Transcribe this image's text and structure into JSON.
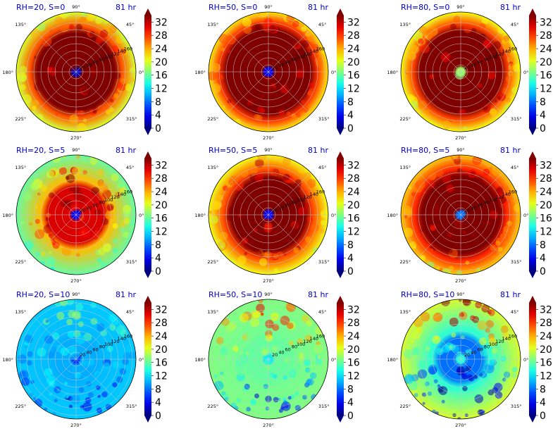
{
  "figure": {
    "angle_labels": [
      "90°",
      "45°",
      "0°",
      "315°",
      "270°",
      "225°",
      "180°",
      "135°"
    ],
    "radial_labels": [
      "20",
      "40",
      "60",
      "80",
      "100",
      "120",
      "140",
      "160"
    ],
    "colorbar": {
      "ticks": [
        "0",
        "4",
        "8",
        "12",
        "16",
        "20",
        "24",
        "28",
        "32"
      ],
      "colormap": "jet",
      "extend": "both",
      "colors": [
        "#00007f",
        "#0000ff",
        "#007fff",
        "#00ffff",
        "#7fff7f",
        "#ffff00",
        "#ff7f00",
        "#ff0000",
        "#7f0000"
      ]
    }
  },
  "chart_data": [
    {
      "type": "heatmap",
      "projection": "polar",
      "title": "RH=20, S=0",
      "time": "81 hr",
      "rh": 20,
      "shear": 0,
      "eye_value": 2,
      "core_value": 34,
      "core_radius_km": 110,
      "outer_value": 20,
      "rlim": [
        0,
        170
      ],
      "clim": [
        0,
        34
      ],
      "azimuthal_bias": 0
    },
    {
      "type": "heatmap",
      "projection": "polar",
      "title": "RH=50, S=0",
      "time": "81 hr",
      "rh": 50,
      "shear": 0,
      "eye_value": 4,
      "core_value": 34,
      "core_radius_km": 120,
      "outer_value": 22,
      "rlim": [
        0,
        170
      ],
      "clim": [
        0,
        34
      ],
      "azimuthal_bias": 0
    },
    {
      "type": "heatmap",
      "projection": "polar",
      "title": "RH=80, S=0",
      "time": "81 hr",
      "rh": 80,
      "shear": 0,
      "eye_value": 18,
      "core_value": 34,
      "core_radius_km": 115,
      "outer_value": 21,
      "rlim": [
        0,
        170
      ],
      "clim": [
        0,
        34
      ],
      "azimuthal_bias": 0
    },
    {
      "type": "heatmap",
      "projection": "polar",
      "title": "RH=20, S=5",
      "time": "81 hr",
      "rh": 20,
      "shear": 5,
      "eye_value": 4,
      "core_value": 31,
      "core_radius_km": 80,
      "outer_value": 16,
      "rlim": [
        0,
        170
      ],
      "clim": [
        0,
        34
      ],
      "azimuthal_bias": 3
    },
    {
      "type": "heatmap",
      "projection": "polar",
      "title": "RH=50, S=5",
      "time": "81 hr",
      "rh": 50,
      "shear": 5,
      "eye_value": 4,
      "core_value": 34,
      "core_radius_km": 105,
      "outer_value": 21,
      "rlim": [
        0,
        170
      ],
      "clim": [
        0,
        34
      ],
      "azimuthal_bias": 2
    },
    {
      "type": "heatmap",
      "projection": "polar",
      "title": "RH=80, S=5",
      "time": "81 hr",
      "rh": 80,
      "shear": 5,
      "eye_value": 8,
      "core_value": 34,
      "core_radius_km": 110,
      "outer_value": 23,
      "rlim": [
        0,
        170
      ],
      "clim": [
        0,
        34
      ],
      "azimuthal_bias": 2
    },
    {
      "type": "heatmap",
      "projection": "polar",
      "title": "RH=20, S=10",
      "time": "81 hr",
      "rh": 20,
      "shear": 10,
      "eye_value": 6,
      "core_value": 10,
      "core_radius_km": 60,
      "outer_value": 11,
      "rlim": [
        0,
        170
      ],
      "clim": [
        0,
        34
      ],
      "azimuthal_bias": 3
    },
    {
      "type": "heatmap",
      "projection": "polar",
      "title": "RH=50, S=10",
      "time": "81 hr",
      "rh": 50,
      "shear": 10,
      "eye_value": 12,
      "core_value": 16,
      "core_radius_km": 60,
      "outer_value": 17,
      "rlim": [
        0,
        170
      ],
      "clim": [
        0,
        34
      ],
      "azimuthal_bias": 9
    },
    {
      "type": "heatmap",
      "projection": "polar",
      "title": "RH=80, S=10",
      "time": "81 hr",
      "rh": 80,
      "shear": 10,
      "eye_value": 14,
      "core_value": 8,
      "core_radius_km": 60,
      "outer_value": 20,
      "rlim": [
        0,
        170
      ],
      "clim": [
        0,
        34
      ],
      "azimuthal_bias": 15
    }
  ]
}
